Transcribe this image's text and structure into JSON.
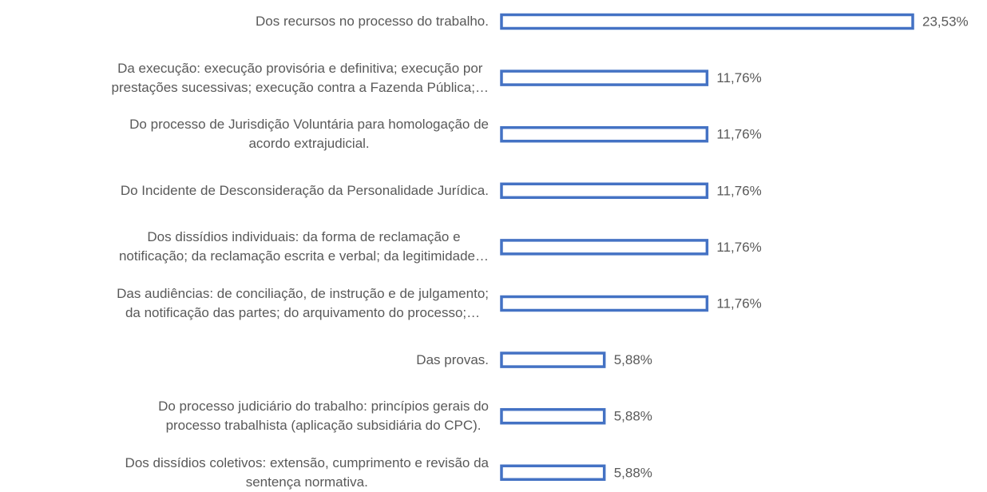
{
  "chart_data": {
    "type": "barh",
    "categories": [
      "Dos recursos no processo do trabalho.",
      "Da execução: execução provisória e definitiva; execução por\nprestações sucessivas; execução contra a Fazenda Pública;…",
      "Do processo de Jurisdição Voluntária para homologação de\nacordo extrajudicial.",
      "Do Incidente de Desconsideração da Personalidade Jurídica.",
      "Dos dissídios individuais: da forma de reclamação e\nnotificação; da reclamação escrita e verbal; da legitimidade…",
      "Das audiências: de conciliação, de instrução e de julgamento;\nda notificação das partes; do arquivamento do processo;…",
      "Das provas.",
      "Do processo judiciário do trabalho: princípios gerais do\nprocesso trabalhista (aplicação subsidiária do CPC).",
      "Dos dissídios coletivos: extensão, cumprimento e revisão da\nsentença normativa."
    ],
    "values": [
      23.53,
      11.76,
      11.76,
      11.76,
      11.76,
      11.76,
      5.88,
      5.88,
      5.88
    ],
    "value_labels": [
      "23,53%",
      "11,76%",
      "11,76%",
      "11,76%",
      "11,76%",
      "11,76%",
      "5,88%",
      "5,88%",
      "5,88%"
    ],
    "color": "#4472c4"
  }
}
